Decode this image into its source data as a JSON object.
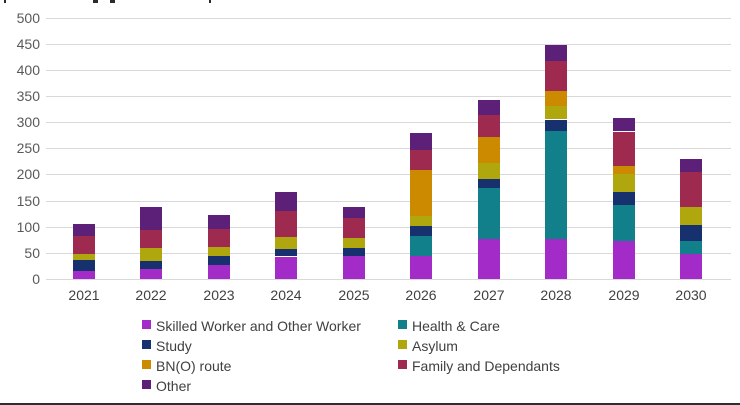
{
  "chart_data": {
    "type": "bar",
    "stacked": true,
    "title": "",
    "xlabel": "",
    "ylabel": "",
    "categories": [
      "2021",
      "2022",
      "2023",
      "2024",
      "2025",
      "2026",
      "2027",
      "2028",
      "2029",
      "2030"
    ],
    "series": [
      {
        "name": "Skilled Worker and Other Worker",
        "color": "#A32CC9",
        "values": [
          16,
          19,
          27,
          43,
          44,
          44,
          77,
          77,
          73,
          48
        ]
      },
      {
        "name": "Health & Care",
        "color": "#12808A",
        "values": [
          0,
          0,
          0,
          0,
          0,
          39,
          97,
          206,
          68,
          25
        ]
      },
      {
        "name": "Study",
        "color": "#16316E",
        "values": [
          20,
          15,
          17,
          15,
          15,
          18,
          17,
          22,
          25,
          30
        ]
      },
      {
        "name": "Asylum",
        "color": "#B0A70F",
        "values": [
          11,
          25,
          18,
          22,
          20,
          19,
          30,
          25,
          34,
          35
        ]
      },
      {
        "name": "BN(O) route",
        "color": "#CC8A00",
        "values": [
          0,
          0,
          0,
          0,
          0,
          89,
          50,
          29,
          16,
          0
        ]
      },
      {
        "name": "Family and Dependants",
        "color": "#9E2B4F",
        "values": [
          35,
          35,
          33,
          50,
          37,
          37,
          42,
          57,
          66,
          67
        ]
      },
      {
        "name": "Other",
        "color": "#5C2078",
        "values": [
          23,
          44,
          28,
          36,
          22,
          34,
          29,
          31,
          26,
          25
        ]
      }
    ],
    "totals": [
      105,
      138,
      123,
      166,
      138,
      280,
      342,
      447,
      308,
      230
    ],
    "y_ticks": [
      0,
      50,
      100,
      150,
      200,
      250,
      300,
      350,
      400,
      450,
      500
    ],
    "ylim": [
      0,
      500
    ],
    "grid": true,
    "legend_position": "bottom",
    "legend_left_column": [
      "Skilled Worker and Other Worker",
      "Study",
      "BN(O) route",
      "Other"
    ],
    "legend_right_column": [
      "Health & Care",
      "Asylum",
      "Family and Dependants"
    ]
  },
  "colors": {
    "background": "#FFFFFF",
    "gridline": "#D9D9D9",
    "y_axis_text": "#595959",
    "x_axis_text": "#404040",
    "legend_text": "#404040"
  }
}
